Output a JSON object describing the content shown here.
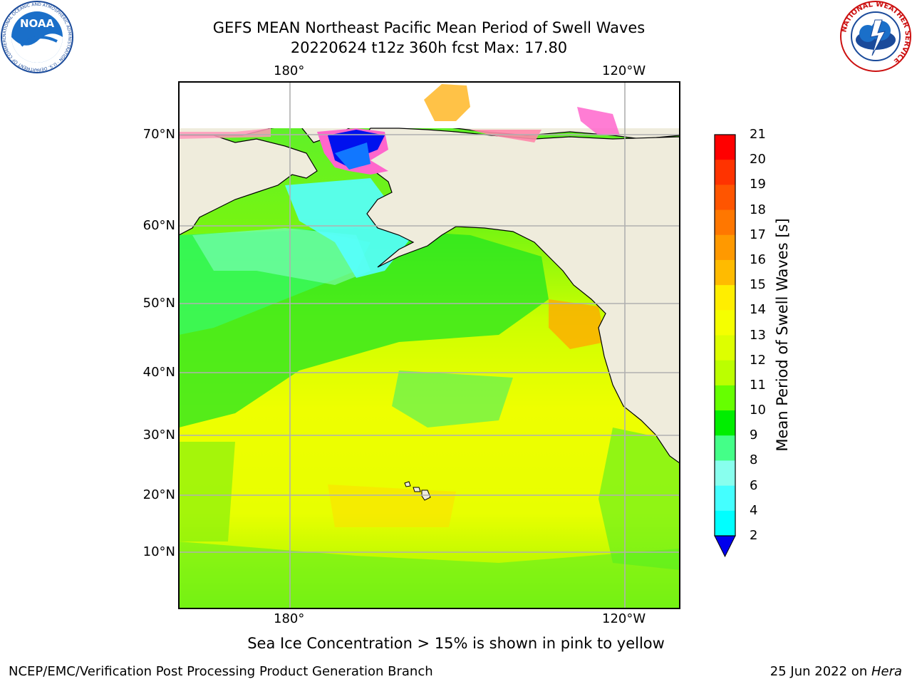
{
  "header": {
    "title_line1": "GEFS MEAN Northeast Pacific Mean Period of Swell Waves",
    "title_line2": "20220624 t12z 360h fcst   Max: 17.80"
  },
  "logos": {
    "left": {
      "icon": "noaa-logo",
      "text": "NOAA",
      "ring_text": "NATIONAL OCEANIC AND ATMOSPHERIC ADMINISTRATION · U.S. DEPARTMENT OF COMMERCE"
    },
    "right": {
      "icon": "nws-logo",
      "ring_text": "NATIONAL WEATHER SERVICE"
    }
  },
  "map": {
    "lon_labels_top": [
      "180°",
      "120°W"
    ],
    "lon_labels_bottom": [
      "180°",
      "120°W"
    ],
    "lat_labels": [
      "70°N",
      "60°N",
      "50°N",
      "40°N",
      "30°N",
      "20°N",
      "10°N"
    ],
    "colors": {
      "land": "#efecdc",
      "grid": "#b0b0b0",
      "coast": "#000000"
    }
  },
  "colorbar": {
    "label": "Mean Period of Swell Waves [s]",
    "ticks": [
      "21",
      "20",
      "19",
      "18",
      "17",
      "16",
      "15",
      "14",
      "13",
      "12",
      "11",
      "10",
      "9",
      "8",
      "6",
      "4",
      "2"
    ],
    "colors_top_to_bottom": [
      "#ff0000",
      "#ff3300",
      "#ff5500",
      "#ff7700",
      "#ff9900",
      "#ffbb00",
      "#ffee00",
      "#f5ff00",
      "#ddff00",
      "#bbff00",
      "#66ff00",
      "#00ee00",
      "#44ff88",
      "#88ffee",
      "#44ffff",
      "#00ffff",
      "#00ddff",
      "#0077ff",
      "#0000ee"
    ]
  },
  "note": "Sea Ice Concentration > 15% is shown in pink to yellow",
  "footer": {
    "left": "NCEP/EMC/Verification Post Processing Product Generation Branch",
    "right_prefix": "25 Jun 2022 on ",
    "right_italic": "Hera"
  }
}
